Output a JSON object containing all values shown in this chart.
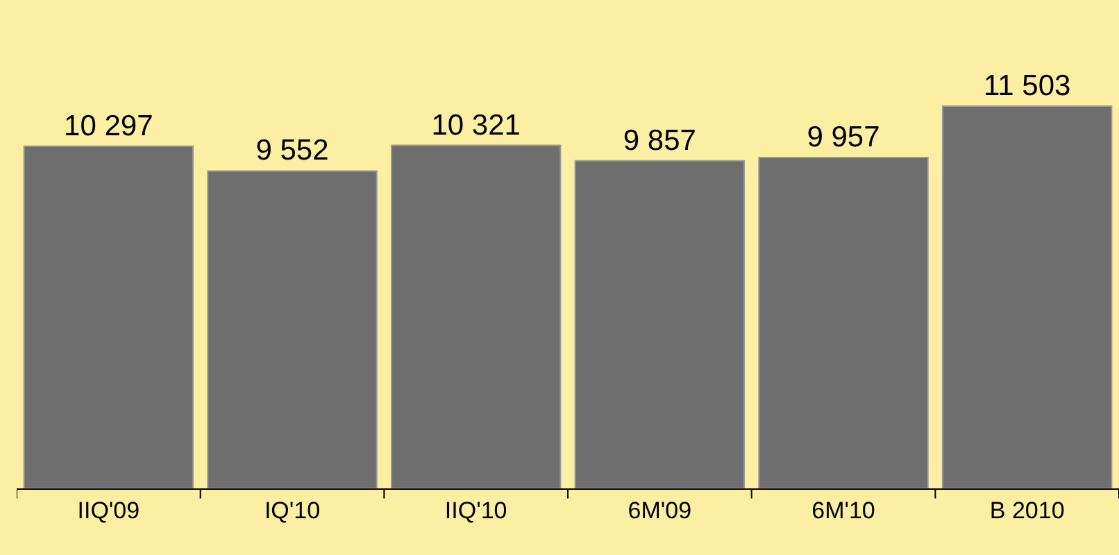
{
  "chart_data": {
    "type": "bar",
    "categories": [
      "IIQ'09",
      "IQ'10",
      "IIQ'10",
      "6M'09",
      "6M'10",
      "B 2010"
    ],
    "values": [
      10297,
      9552,
      10321,
      9857,
      9957,
      11503
    ],
    "value_labels": [
      "10 297",
      "9 552",
      "10 321",
      "9 857",
      "9 957",
      "11 503"
    ],
    "color": "#6e6e6e",
    "grid": false,
    "legend": false
  }
}
